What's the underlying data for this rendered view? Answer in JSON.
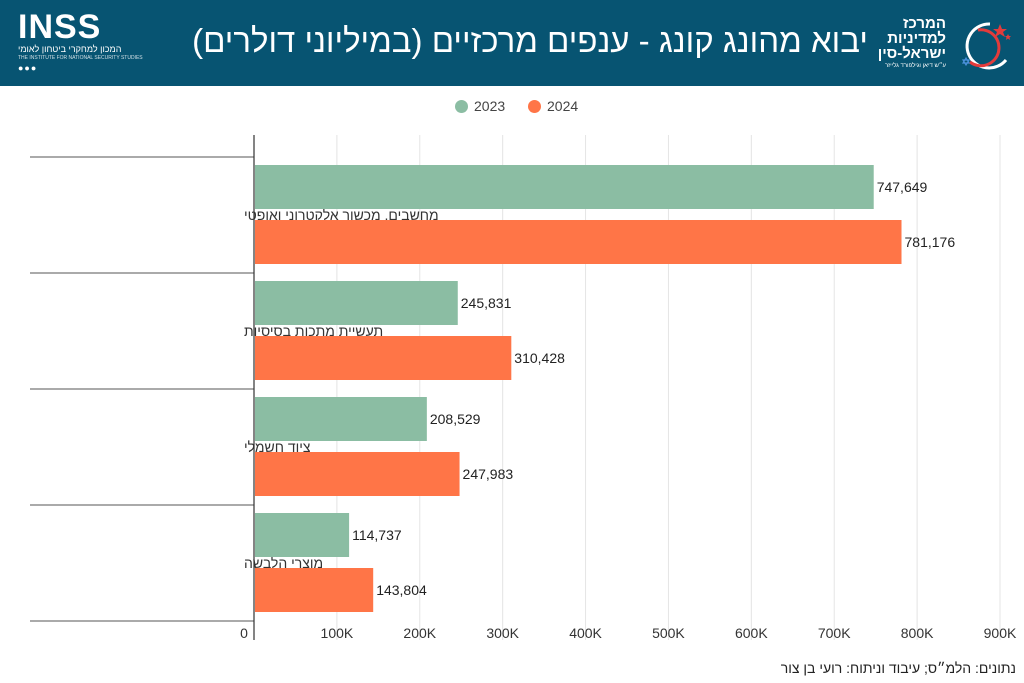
{
  "header": {
    "title": "יבוא מהונג קונג - ענפים מרכזיים (במיליוני דולרים)",
    "inss_logo": {
      "wordmark": "INSS",
      "subtitle_he": "המכון למחקרי ביטחון לאומי",
      "subtitle_en": "THE INSTITUTE FOR NATIONAL SECURITY STUDIES"
    },
    "center_logo": {
      "line1": "המרכז",
      "line2": "למדיניות",
      "line3": "ישראל-סין",
      "tagline": "ע״ש דיאן וגילפורד גלייזר"
    },
    "background_color": "#075472"
  },
  "footer": {
    "source": "נתונים: הלמ״ס; עיבוד וניתוח: רועי בן צור"
  },
  "chart_data": {
    "type": "bar",
    "orientation": "horizontal",
    "title": "יבוא מהונג קונג - ענפים מרכזיים (במיליוני דולרים)",
    "categories": [
      "מחשבים, מכשור אלקטרוני ואופטי",
      "תעשיית מתכות בסיסיות",
      "ציוד חשמלי",
      "מוצרי הלבשה"
    ],
    "series": [
      {
        "name": "2023",
        "color": "#8bbda3",
        "values": [
          747649,
          245831,
          208529,
          114737
        ],
        "labels": [
          "747,649",
          "245,831",
          "208,529",
          "114,737"
        ]
      },
      {
        "name": "2024",
        "color": "#ff7547",
        "values": [
          781176,
          310428,
          247983,
          143804
        ],
        "labels": [
          "781,176",
          "310,428",
          "247,983",
          "143,804"
        ]
      }
    ],
    "xlim": [
      0,
      900000
    ],
    "xticks": [
      0,
      100000,
      200000,
      300000,
      400000,
      500000,
      600000,
      700000,
      800000,
      900000
    ],
    "xtick_labels": [
      "0",
      "100K",
      "200K",
      "300K",
      "400K",
      "500K",
      "600K",
      "700K",
      "800K",
      "900K"
    ],
    "xlabel": "",
    "ylabel": "",
    "grid": true,
    "legend_position": "top-center"
  }
}
